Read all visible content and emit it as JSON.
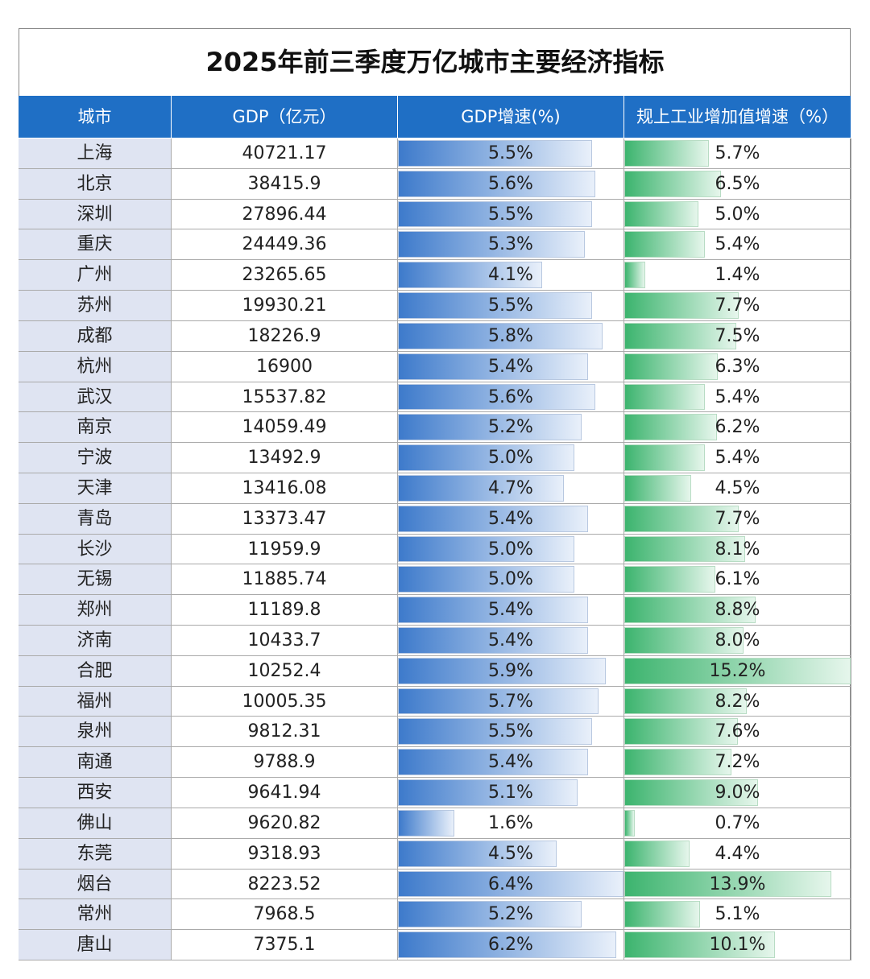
{
  "table": {
    "title": "2025年前三季度万亿城市主要经济指标",
    "columns": [
      "城市",
      "GDP（亿元）",
      "GDP增速(%)",
      "规上工业增加值增速（%）"
    ],
    "rows": [
      {
        "city": "上海",
        "gdp": 40721.17,
        "gdp_growth": {
          "value": 5.5,
          "label": "5.5%"
        },
        "industry_growth": {
          "value": 5.7,
          "label": "5.7%"
        }
      },
      {
        "city": "北京",
        "gdp": 38415.9,
        "gdp_growth": {
          "value": 5.6,
          "label": "5.6%"
        },
        "industry_growth": {
          "value": 6.5,
          "label": "6.5%"
        }
      },
      {
        "city": "深圳",
        "gdp": 27896.44,
        "gdp_growth": {
          "value": 5.5,
          "label": "5.5%"
        },
        "industry_growth": {
          "value": 5.0,
          "label": "5.0%"
        }
      },
      {
        "city": "重庆",
        "gdp": 24449.36,
        "gdp_growth": {
          "value": 5.3,
          "label": "5.3%"
        },
        "industry_growth": {
          "value": 5.4,
          "label": "5.4%"
        }
      },
      {
        "city": "广州",
        "gdp": 23265.65,
        "gdp_growth": {
          "value": 4.1,
          "label": "4.1%"
        },
        "industry_growth": {
          "value": 1.4,
          "label": "1.4%"
        }
      },
      {
        "city": "苏州",
        "gdp": 19930.21,
        "gdp_growth": {
          "value": 5.5,
          "label": "5.5%"
        },
        "industry_growth": {
          "value": 7.7,
          "label": "7.7%"
        }
      },
      {
        "city": "成都",
        "gdp": 18226.9,
        "gdp_growth": {
          "value": 5.8,
          "label": "5.8%"
        },
        "industry_growth": {
          "value": 7.5,
          "label": "7.5%"
        }
      },
      {
        "city": "杭州",
        "gdp": 16900,
        "gdp_growth": {
          "value": 5.4,
          "label": "5.4%"
        },
        "industry_growth": {
          "value": 6.3,
          "label": "6.3%"
        }
      },
      {
        "city": "武汉",
        "gdp": 15537.82,
        "gdp_growth": {
          "value": 5.6,
          "label": "5.6%"
        },
        "industry_growth": {
          "value": 5.4,
          "label": "5.4%"
        }
      },
      {
        "city": "南京",
        "gdp": 14059.49,
        "gdp_growth": {
          "value": 5.2,
          "label": "5.2%"
        },
        "industry_growth": {
          "value": 6.2,
          "label": "6.2%"
        }
      },
      {
        "city": "宁波",
        "gdp": 13492.9,
        "gdp_growth": {
          "value": 5.0,
          "label": "5.0%"
        },
        "industry_growth": {
          "value": 5.4,
          "label": "5.4%"
        }
      },
      {
        "city": "天津",
        "gdp": 13416.08,
        "gdp_growth": {
          "value": 4.7,
          "label": "4.7%"
        },
        "industry_growth": {
          "value": 4.5,
          "label": "4.5%"
        }
      },
      {
        "city": "青岛",
        "gdp": 13373.47,
        "gdp_growth": {
          "value": 5.4,
          "label": "5.4%"
        },
        "industry_growth": {
          "value": 7.7,
          "label": "7.7%"
        }
      },
      {
        "city": "长沙",
        "gdp": 11959.9,
        "gdp_growth": {
          "value": 5.0,
          "label": "5.0%"
        },
        "industry_growth": {
          "value": 8.1,
          "label": "8.1%"
        }
      },
      {
        "city": "无锡",
        "gdp": 11885.74,
        "gdp_growth": {
          "value": 5.0,
          "label": "5.0%"
        },
        "industry_growth": {
          "value": 6.1,
          "label": "6.1%"
        }
      },
      {
        "city": "郑州",
        "gdp": 11189.8,
        "gdp_growth": {
          "value": 5.4,
          "label": "5.4%"
        },
        "industry_growth": {
          "value": 8.8,
          "label": "8.8%"
        }
      },
      {
        "city": "济南",
        "gdp": 10433.7,
        "gdp_growth": {
          "value": 5.4,
          "label": "5.4%"
        },
        "industry_growth": {
          "value": 8.0,
          "label": "8.0%"
        }
      },
      {
        "city": "合肥",
        "gdp": 10252.4,
        "gdp_growth": {
          "value": 5.9,
          "label": "5.9%"
        },
        "industry_growth": {
          "value": 15.2,
          "label": "15.2%"
        }
      },
      {
        "city": "福州",
        "gdp": 10005.35,
        "gdp_growth": {
          "value": 5.7,
          "label": "5.7%"
        },
        "industry_growth": {
          "value": 8.2,
          "label": "8.2%"
        }
      },
      {
        "city": "泉州",
        "gdp": 9812.31,
        "gdp_growth": {
          "value": 5.5,
          "label": "5.5%"
        },
        "industry_growth": {
          "value": 7.6,
          "label": "7.6%"
        }
      },
      {
        "city": "南通",
        "gdp": 9788.9,
        "gdp_growth": {
          "value": 5.4,
          "label": "5.4%"
        },
        "industry_growth": {
          "value": 7.2,
          "label": "7.2%"
        }
      },
      {
        "city": "西安",
        "gdp": 9641.94,
        "gdp_growth": {
          "value": 5.1,
          "label": "5.1%"
        },
        "industry_growth": {
          "value": 9.0,
          "label": "9.0%"
        }
      },
      {
        "city": "佛山",
        "gdp": 9620.82,
        "gdp_growth": {
          "value": 1.6,
          "label": "1.6%"
        },
        "industry_growth": {
          "value": 0.7,
          "label": "0.7%"
        }
      },
      {
        "city": "东莞",
        "gdp": 9318.93,
        "gdp_growth": {
          "value": 4.5,
          "label": "4.5%"
        },
        "industry_growth": {
          "value": 4.4,
          "label": "4.4%"
        }
      },
      {
        "city": "烟台",
        "gdp": 8223.52,
        "gdp_growth": {
          "value": 6.4,
          "label": "6.4%"
        },
        "industry_growth": {
          "value": 13.9,
          "label": "13.9%"
        }
      },
      {
        "city": "常州",
        "gdp": 7968.5,
        "gdp_growth": {
          "value": 5.2,
          "label": "5.2%"
        },
        "industry_growth": {
          "value": 5.1,
          "label": "5.1%"
        }
      },
      {
        "city": "唐山",
        "gdp": 7375.1,
        "gdp_growth": {
          "value": 6.2,
          "label": "6.2%"
        },
        "industry_growth": {
          "value": 10.1,
          "label": "10.1%"
        }
      }
    ]
  }
}
